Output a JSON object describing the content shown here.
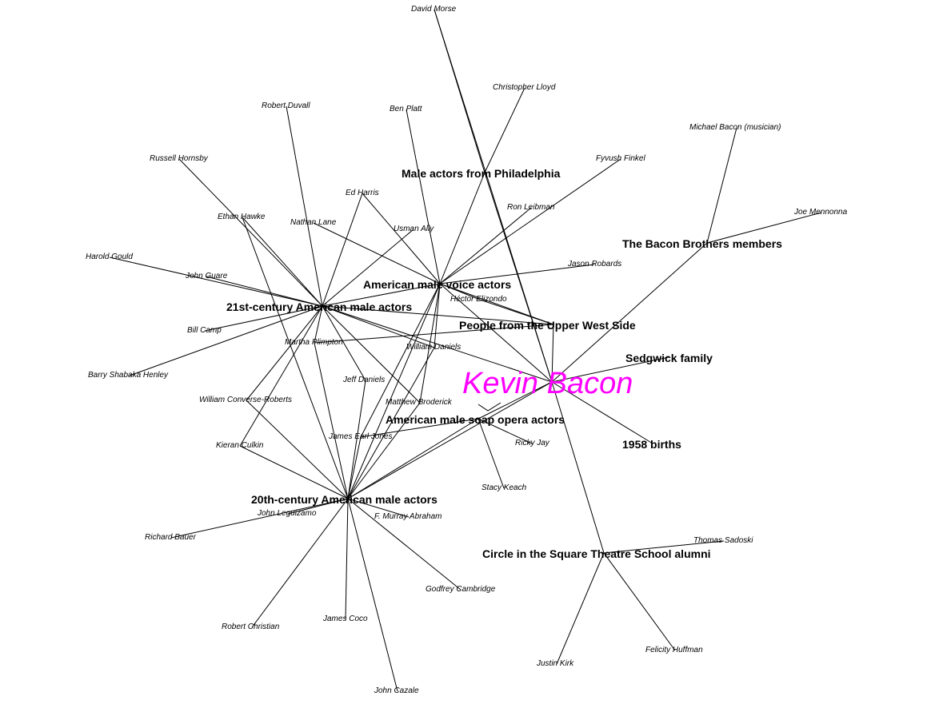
{
  "graph": {
    "center": {
      "id": "kevin",
      "label": "Kevin Bacon",
      "color": "#ff00ff"
    },
    "categories": [
      {
        "id": "male_philly",
        "label": "Male actors from Philadelphia"
      },
      {
        "id": "bacon_bros",
        "label": "The Bacon Brothers members"
      },
      {
        "id": "voice",
        "label": "American male voice actors"
      },
      {
        "id": "c21",
        "label": "21st-century American male actors"
      },
      {
        "id": "uws",
        "label": "People from the Upper West Side"
      },
      {
        "id": "sedgwick",
        "label": "Sedgwick family"
      },
      {
        "id": "soap",
        "label": "American male soap opera actors"
      },
      {
        "id": "births1958",
        "label": "1958 births"
      },
      {
        "id": "c20",
        "label": "20th-century American male actors"
      },
      {
        "id": "circle",
        "label": "Circle in the Square Theatre School alumni"
      }
    ],
    "people": [
      {
        "id": "david_morse",
        "label": "David Morse"
      },
      {
        "id": "chris_lloyd",
        "label": "Christopher Lloyd"
      },
      {
        "id": "robert_duvall",
        "label": "Robert Duvall"
      },
      {
        "id": "ben_platt",
        "label": "Ben Platt"
      },
      {
        "id": "michael_bacon",
        "label": "Michael Bacon (musician)"
      },
      {
        "id": "russell_hornsby",
        "label": "Russell Hornsby"
      },
      {
        "id": "fyvush_finkel",
        "label": "Fyvush Finkel"
      },
      {
        "id": "ed_harris",
        "label": "Ed Harris"
      },
      {
        "id": "ron_leibman",
        "label": "Ron Leibman"
      },
      {
        "id": "joe_mennonna",
        "label": "Joe Mennonna"
      },
      {
        "id": "ethan_hawke",
        "label": "Ethan Hawke"
      },
      {
        "id": "nathan_lane",
        "label": "Nathan Lane"
      },
      {
        "id": "usman_ally",
        "label": "Usman Ally"
      },
      {
        "id": "harold_gould",
        "label": "Harold Gould"
      },
      {
        "id": "jason_robards",
        "label": "Jason Robards"
      },
      {
        "id": "john_guare",
        "label": "John Guare"
      },
      {
        "id": "hector_elizondo",
        "label": "Héctor Elizondo"
      },
      {
        "id": "bill_camp",
        "label": "Bill Camp"
      },
      {
        "id": "martha_plimpton",
        "label": "Martha Plimpton"
      },
      {
        "id": "william_daniels",
        "label": "William Daniels"
      },
      {
        "id": "barry_henley",
        "label": "Barry Shabaka Henley"
      },
      {
        "id": "jeff_daniels",
        "label": "Jeff Daniels"
      },
      {
        "id": "william_cr",
        "label": "William Converse-Roberts"
      },
      {
        "id": "matthew_broderick",
        "label": "Matthew Broderick"
      },
      {
        "id": "james_earl_jones",
        "label": "James Earl Jones"
      },
      {
        "id": "ricky_jay",
        "label": "Ricky Jay"
      },
      {
        "id": "kieran_culkin",
        "label": "Kieran Culkin"
      },
      {
        "id": "stacy_keach",
        "label": "Stacy Keach"
      },
      {
        "id": "john_leguizamo",
        "label": "John Leguizamo"
      },
      {
        "id": "f_murray",
        "label": "F. Murray Abraham"
      },
      {
        "id": "thomas_sadoski",
        "label": "Thomas Sadoski"
      },
      {
        "id": "richard_bauer",
        "label": "Richard Bauer"
      },
      {
        "id": "godfrey_cambridge",
        "label": "Godfrey Cambridge"
      },
      {
        "id": "robert_christian",
        "label": "Robert Christian"
      },
      {
        "id": "james_coco",
        "label": "James Coco"
      },
      {
        "id": "felicity_huffman",
        "label": "Felicity Huffman"
      },
      {
        "id": "justin_kirk",
        "label": "Justin Kirk"
      },
      {
        "id": "john_cazale",
        "label": "John Cazale"
      }
    ],
    "edges": [
      [
        "david_morse",
        "male_philly"
      ],
      [
        "david_morse",
        "kevin"
      ],
      [
        "chris_lloyd",
        "male_philly"
      ],
      [
        "robert_duvall",
        "c21"
      ],
      [
        "ben_platt",
        "voice"
      ],
      [
        "michael_bacon",
        "bacon_bros"
      ],
      [
        "russell_hornsby",
        "c21"
      ],
      [
        "fyvush_finkel",
        "voice"
      ],
      [
        "ed_harris",
        "c21"
      ],
      [
        "ed_harris",
        "voice"
      ],
      [
        "ron_leibman",
        "voice"
      ],
      [
        "joe_mennonna",
        "bacon_bros"
      ],
      [
        "ethan_hawke",
        "c21"
      ],
      [
        "ethan_hawke",
        "c20"
      ],
      [
        "nathan_lane",
        "voice"
      ],
      [
        "usman_ally",
        "c21"
      ],
      [
        "harold_gould",
        "c21"
      ],
      [
        "john_guare",
        "c21"
      ],
      [
        "jason_robards",
        "voice"
      ],
      [
        "hector_elizondo",
        "voice"
      ],
      [
        "hector_elizondo",
        "uws"
      ],
      [
        "bill_camp",
        "c21"
      ],
      [
        "barry_henley",
        "c21"
      ],
      [
        "martha_plimpton",
        "c21"
      ],
      [
        "martha_plimpton",
        "c20"
      ],
      [
        "martha_plimpton",
        "uws"
      ],
      [
        "william_daniels",
        "c21"
      ],
      [
        "william_daniels",
        "c20"
      ],
      [
        "william_daniels",
        "voice"
      ],
      [
        "jeff_daniels",
        "c21"
      ],
      [
        "jeff_daniels",
        "c20"
      ],
      [
        "william_cr",
        "c21"
      ],
      [
        "william_cr",
        "c20"
      ],
      [
        "matthew_broderick",
        "c21"
      ],
      [
        "matthew_broderick",
        "c20"
      ],
      [
        "matthew_broderick",
        "voice"
      ],
      [
        "james_earl_jones",
        "c20"
      ],
      [
        "james_earl_jones",
        "voice"
      ],
      [
        "james_earl_jones",
        "soap"
      ],
      [
        "kieran_culkin",
        "c21"
      ],
      [
        "kieran_culkin",
        "c20"
      ],
      [
        "ricky_jay",
        "soap"
      ],
      [
        "stacy_keach",
        "soap"
      ],
      [
        "john_leguizamo",
        "c20"
      ],
      [
        "f_murray",
        "c20"
      ],
      [
        "thomas_sadoski",
        "circle"
      ],
      [
        "richard_bauer",
        "c20"
      ],
      [
        "godfrey_cambridge",
        "c20"
      ],
      [
        "robert_christian",
        "c20"
      ],
      [
        "james_coco",
        "c20"
      ],
      [
        "john_cazale",
        "c20"
      ],
      [
        "felicity_huffman",
        "circle"
      ],
      [
        "justin_kirk",
        "circle"
      ],
      [
        "male_philly",
        "voice"
      ],
      [
        "male_philly",
        "kevin"
      ],
      [
        "bacon_bros",
        "kevin"
      ],
      [
        "voice",
        "kevin"
      ],
      [
        "voice",
        "c21"
      ],
      [
        "voice",
        "c20"
      ],
      [
        "voice",
        "uws"
      ],
      [
        "c21",
        "kevin"
      ],
      [
        "c21",
        "uws"
      ],
      [
        "uws",
        "kevin"
      ],
      [
        "sedgwick",
        "kevin"
      ],
      [
        "soap",
        "kevin"
      ],
      [
        "soap",
        "c20"
      ],
      [
        "births1958",
        "kevin"
      ],
      [
        "c20",
        "kevin"
      ],
      [
        "circle",
        "kevin"
      ]
    ]
  }
}
